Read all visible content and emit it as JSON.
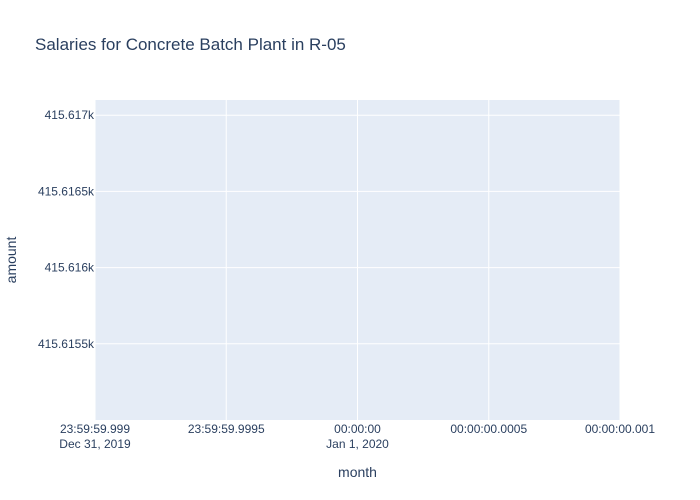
{
  "chart_data": {
    "type": "line",
    "title": "Salaries for Concrete Batch Plant in R-05",
    "xlabel": "month",
    "ylabel": "amount",
    "series": [],
    "x_ticks": [
      {
        "line1": "23:59:59.999",
        "line2": "Dec 31, 2019"
      },
      {
        "line1": "23:59:59.9995",
        "line2": ""
      },
      {
        "line1": "00:00:00",
        "line2": "Jan 1, 2020"
      },
      {
        "line1": "00:00:00.0005",
        "line2": ""
      },
      {
        "line1": "00:00:00.001",
        "line2": ""
      }
    ],
    "x_tick_values_ms": [
      -1,
      -0.5,
      0,
      0.5,
      1
    ],
    "xlim_ms": [
      -1,
      1
    ],
    "y_ticks": [
      {
        "value": 415615.5,
        "label": "415.6155k"
      },
      {
        "value": 415616.0,
        "label": "415.616k"
      },
      {
        "value": 415616.5,
        "label": "415.6165k"
      },
      {
        "value": 415617.0,
        "label": "415.617k"
      }
    ],
    "ylim": [
      415615.0,
      415617.1
    ],
    "grid": true,
    "colors": {
      "plot_background": "#e5ecf6",
      "grid": "#ffffff",
      "text": "#2a3f5f"
    }
  }
}
